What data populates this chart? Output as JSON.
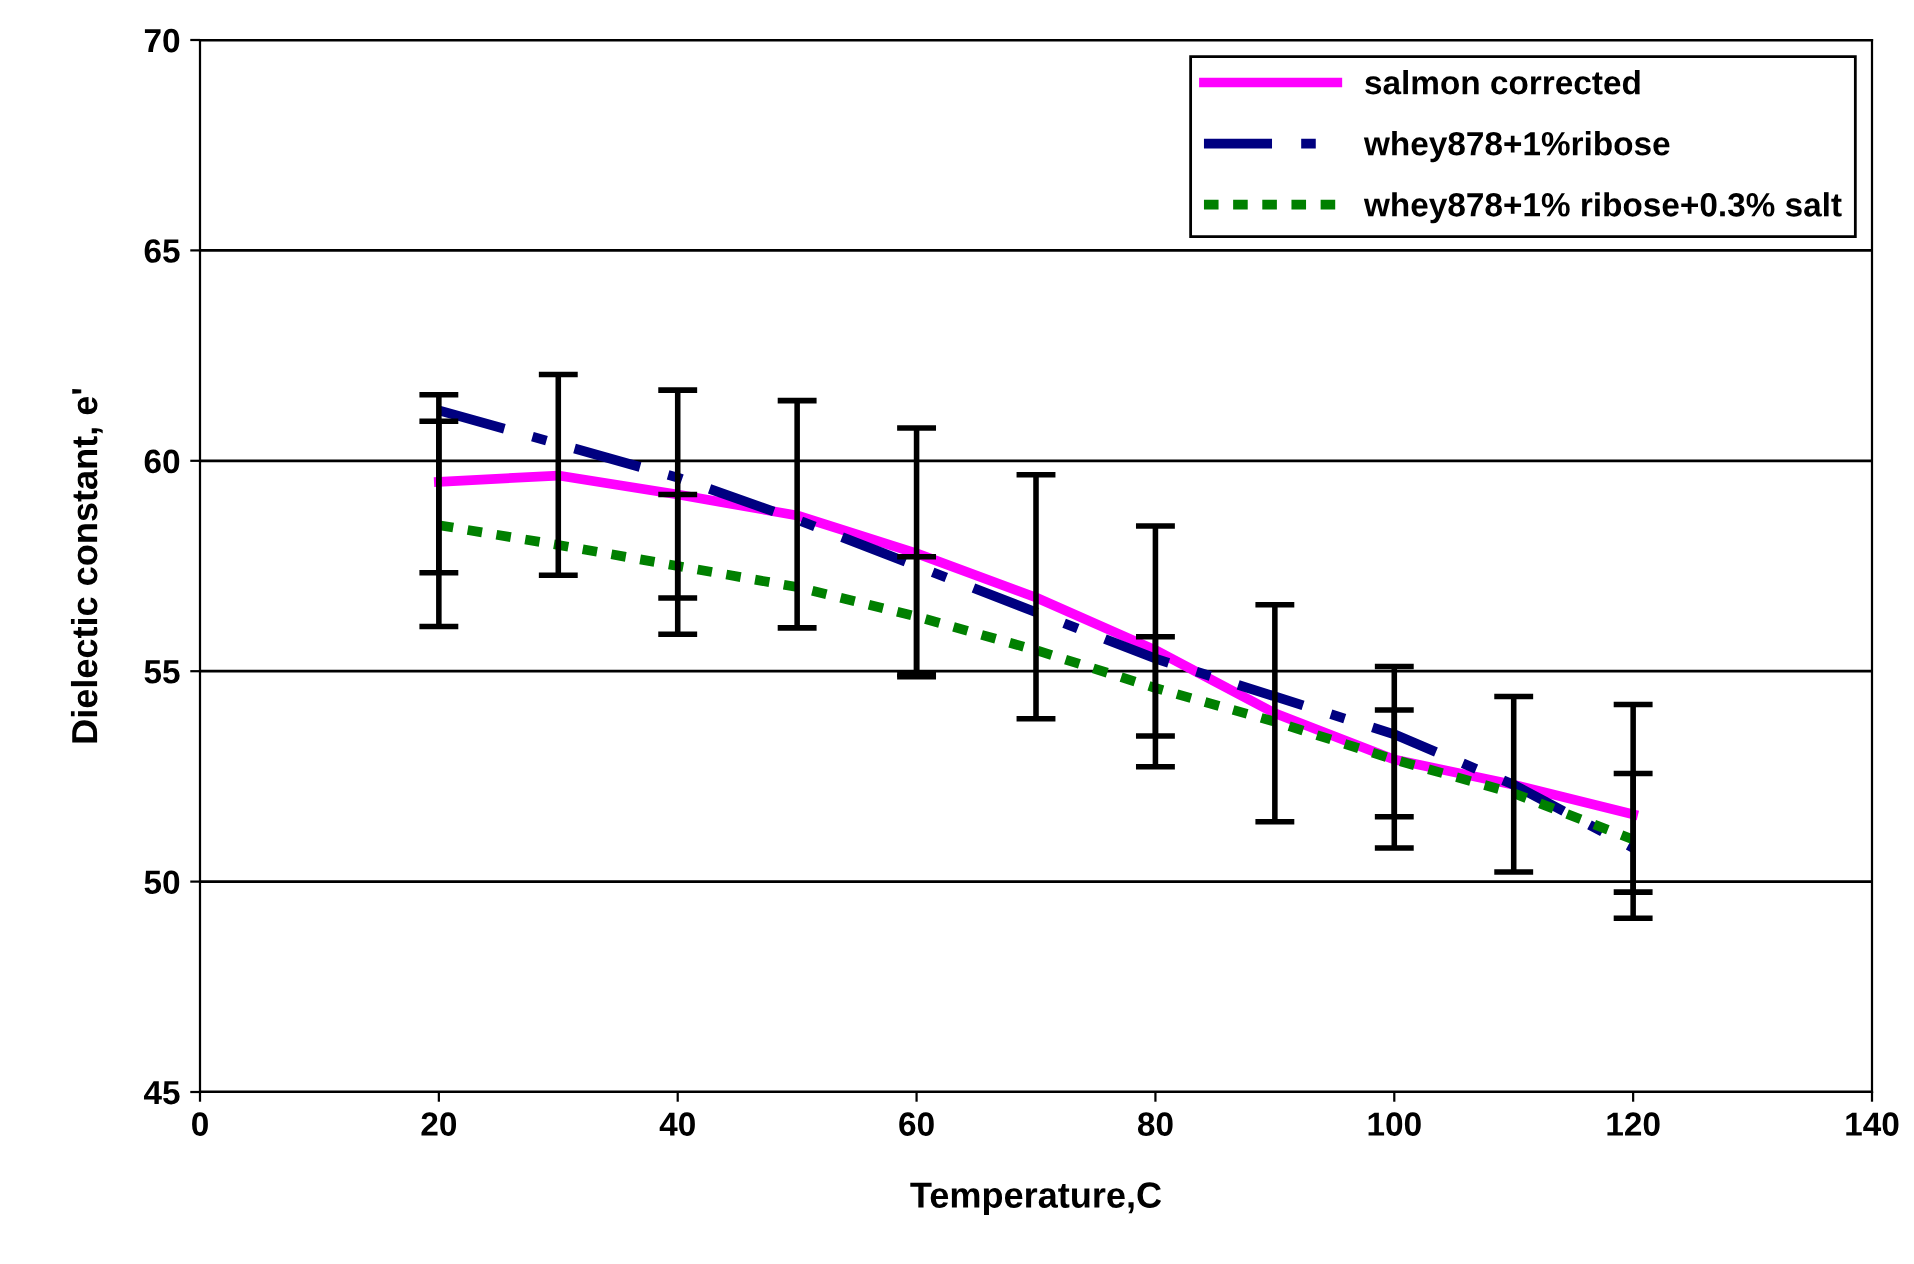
{
  "chart_data": {
    "type": "line",
    "xlabel": "Temperature,C",
    "ylabel": "Dielectic constant, e'",
    "x": [
      20,
      30,
      40,
      50,
      60,
      70,
      80,
      90,
      100,
      110,
      120
    ],
    "series": [
      {
        "name": "salmon corrected",
        "color": "#ff00ff",
        "line_style": "solid",
        "values": [
          59.5,
          59.65,
          59.2,
          58.7,
          57.8,
          56.75,
          55.5,
          54.0,
          52.9,
          52.3,
          51.6
        ],
        "errors": [
          [
            56.06,
            61.57
          ],
          [
            57.28,
            62.05
          ],
          [
            55.88,
            61.68
          ],
          [
            56.03,
            61.43
          ],
          [
            54.87,
            60.78
          ],
          [
            53.87,
            59.67
          ],
          [
            52.73,
            58.45
          ],
          [
            51.42,
            56.58
          ],
          [
            50.8,
            55.11
          ],
          [
            50.23,
            54.4
          ],
          [
            49.13,
            54.21
          ]
        ]
      },
      {
        "name": "whey878+1%ribose",
        "color": "#000080",
        "line_style": "dashed",
        "values": [
          61.2,
          60.4,
          59.6,
          58.6,
          57.5,
          56.4,
          55.3,
          54.4,
          53.5,
          52.3,
          50.8
        ]
      },
      {
        "name": "whey878+1% ribose+0.3% salt",
        "color": "#008000",
        "line_style": "dotted",
        "values": [
          58.47,
          58.0,
          57.5,
          57.0,
          56.3,
          55.5,
          54.6,
          53.8,
          52.9,
          52.1,
          51.0
        ],
        "errors": [
          [
            57.34,
            60.94
          ],
          null,
          [
            56.74,
            59.2
          ],
          null,
          [
            54.92,
            57.72
          ],
          null,
          [
            53.46,
            55.82
          ],
          null,
          [
            51.54,
            54.08
          ],
          null,
          [
            49.75,
            52.57
          ]
        ]
      }
    ],
    "xlim": [
      0,
      140
    ],
    "xticks": [
      0,
      20,
      40,
      60,
      80,
      100,
      120,
      140
    ],
    "ylim": [
      45,
      70
    ],
    "yticks": [
      45,
      50,
      55,
      60,
      65,
      70
    ],
    "grid": "y",
    "legend": "top right",
    "marker": "none"
  }
}
